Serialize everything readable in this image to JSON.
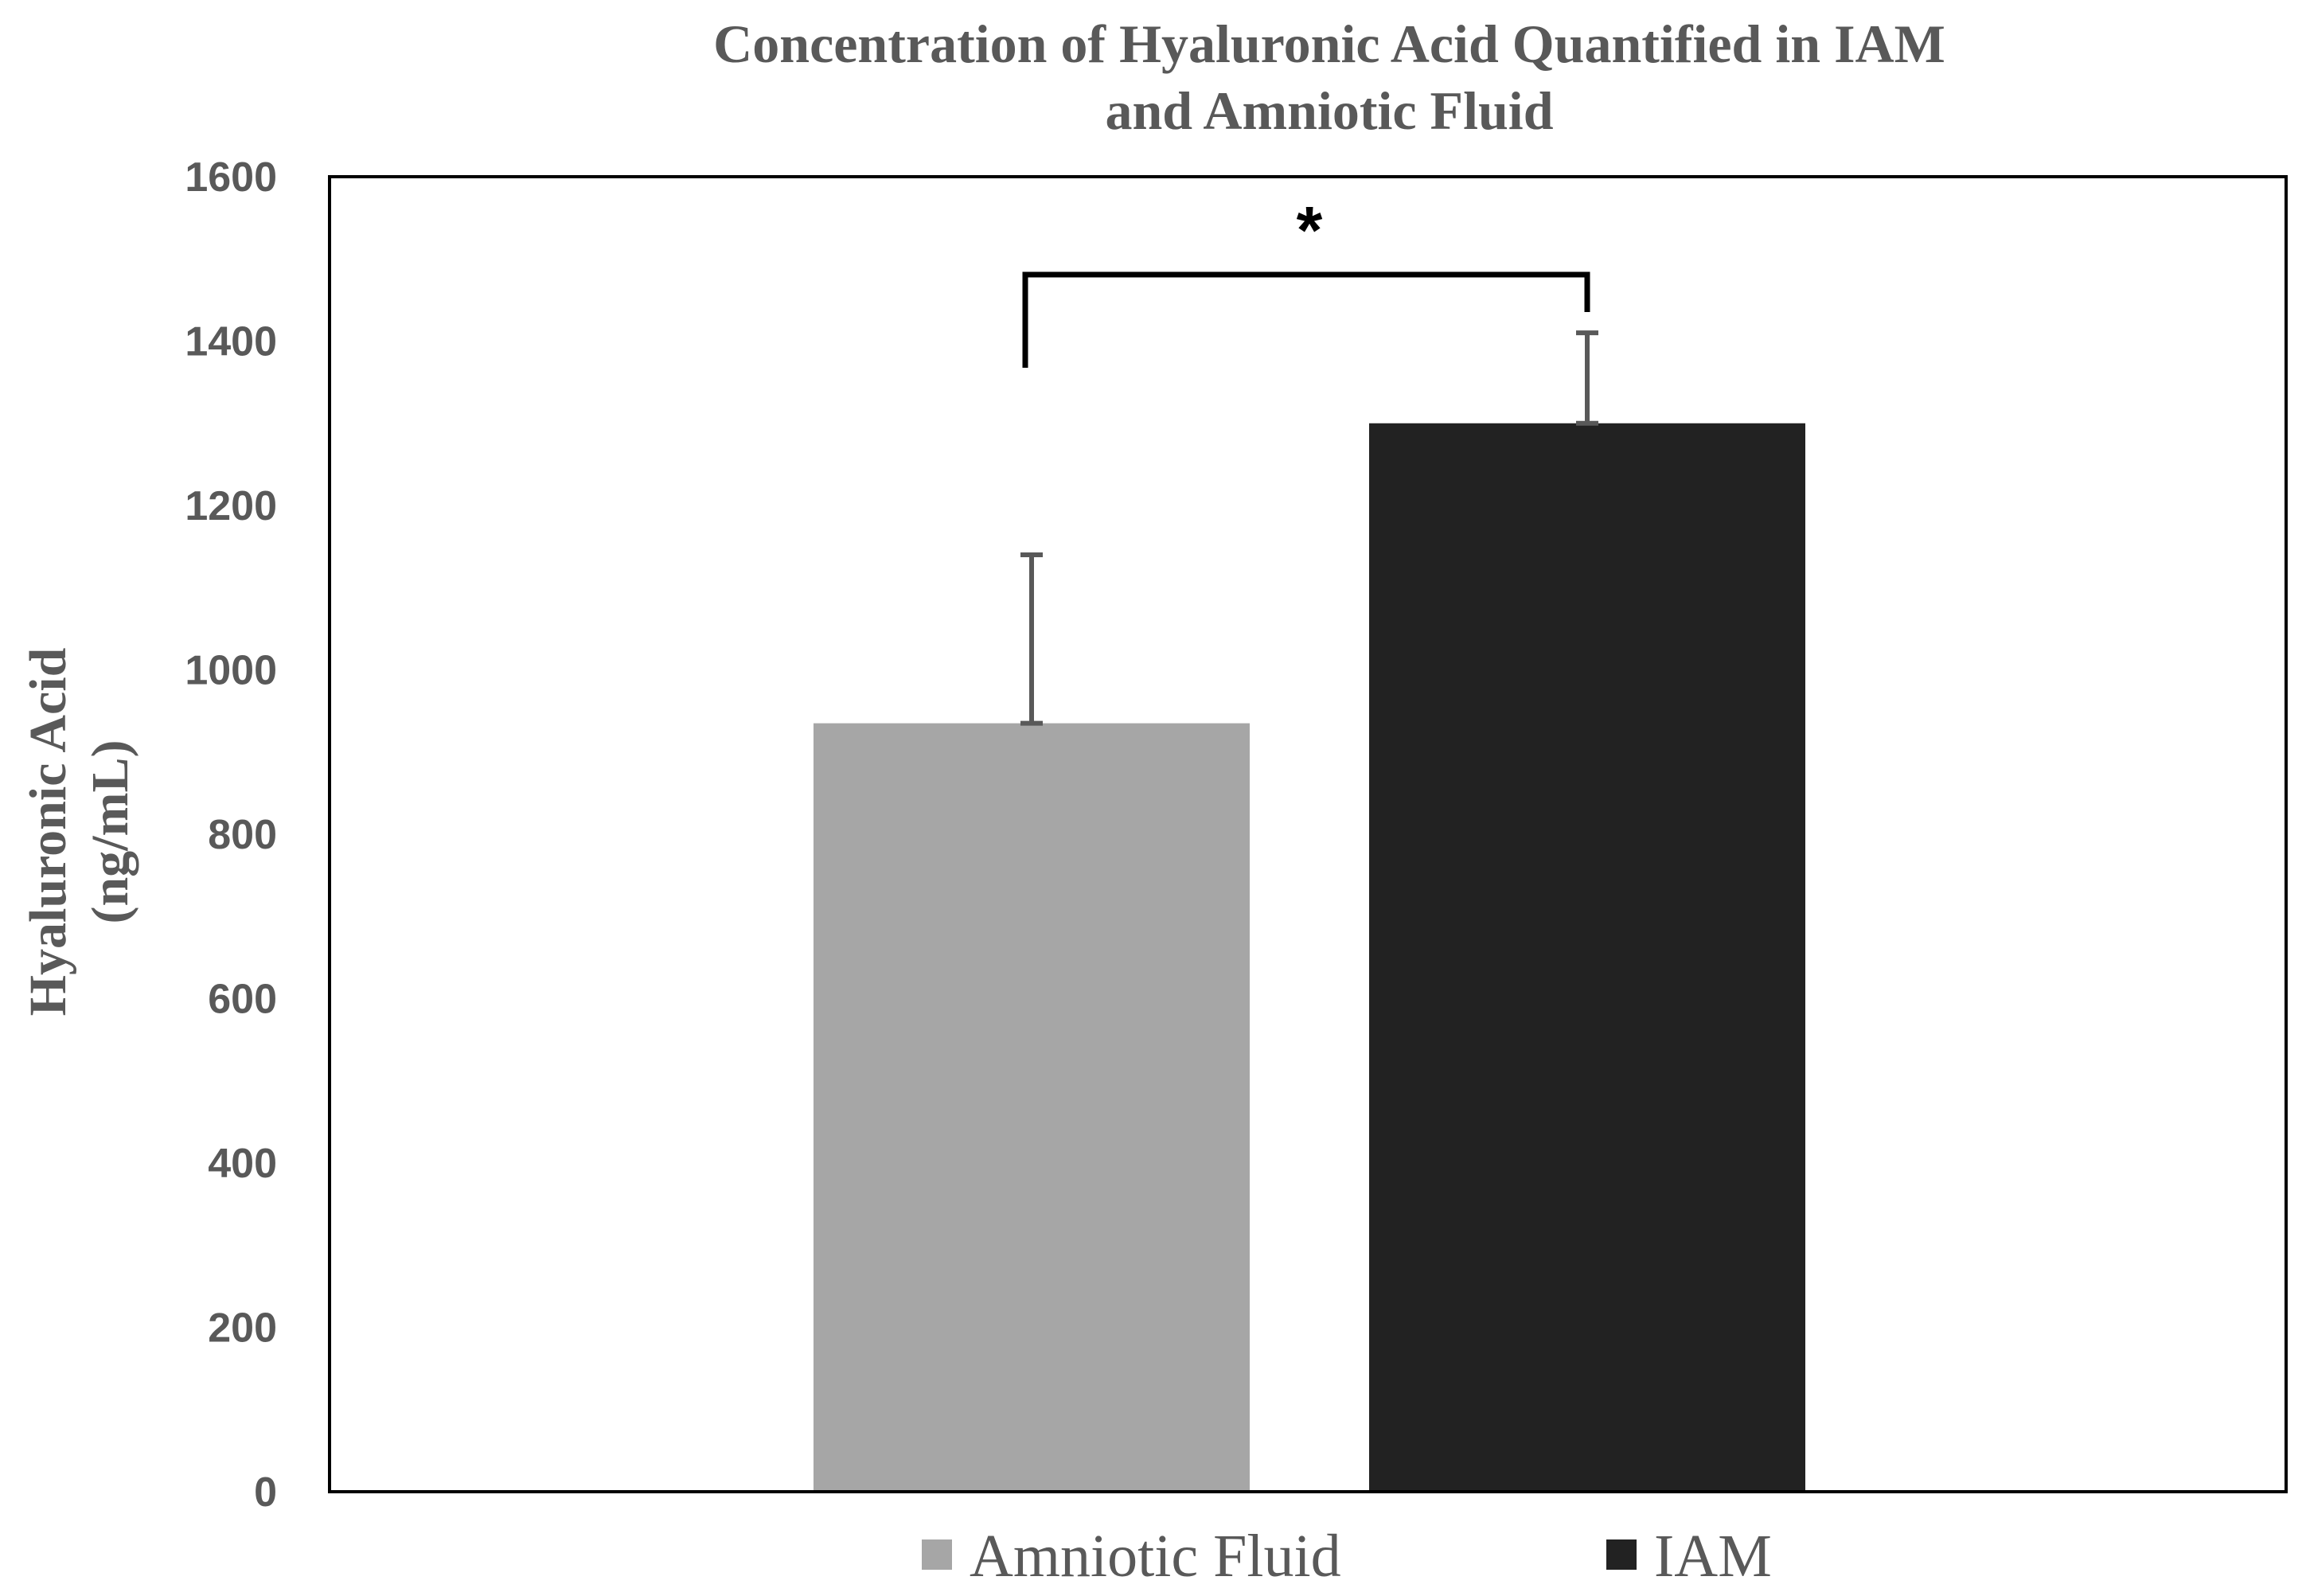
{
  "chart_data": {
    "type": "bar",
    "title_lines": [
      "Concentration of Hyaluronic Acid Quantified in IAM",
      "and Amniotic Fluid"
    ],
    "ylabel_lines": [
      "Hyaluronic Acid",
      "(ng/mL)"
    ],
    "xlabel": "",
    "ylim": [
      0,
      1600
    ],
    "yticks": [
      "0",
      "200",
      "400",
      "600",
      "800",
      "1000",
      "1200",
      "1400",
      "1600"
    ],
    "grid": false,
    "legend_position": "bottom",
    "series": [
      {
        "name": "Amniotic Fluid",
        "value": 935,
        "error": 205,
        "color": "#a6a6a6"
      },
      {
        "name": "IAM",
        "value": 1300,
        "error": 110,
        "color": "#222222"
      }
    ],
    "significance": {
      "between": [
        "Amniotic Fluid",
        "IAM"
      ],
      "label": "*"
    }
  }
}
